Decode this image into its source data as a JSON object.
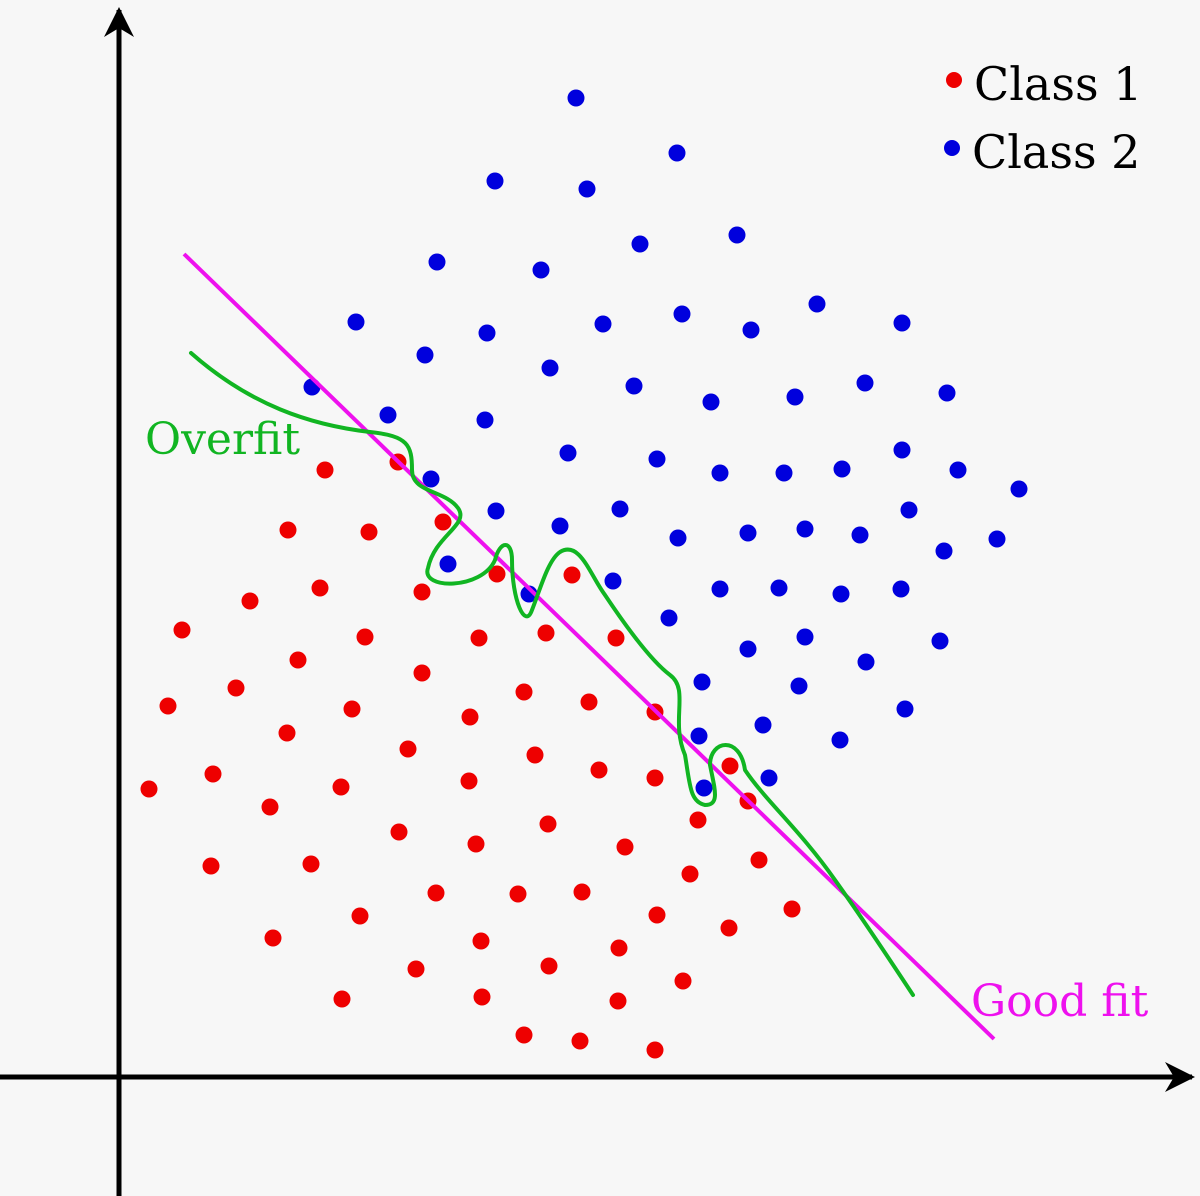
{
  "legend": {
    "class1": "Class 1",
    "class2": "Class 2"
  },
  "labels": {
    "overfit": "Overfit",
    "good_fit": "Good fit"
  },
  "colors": {
    "class1": "#ee0000",
    "class2": "#0000dd",
    "overfit": "#11b522",
    "good_fit": "#ee11ee",
    "axis": "#000000",
    "background": "#f7f7f7"
  }
}
